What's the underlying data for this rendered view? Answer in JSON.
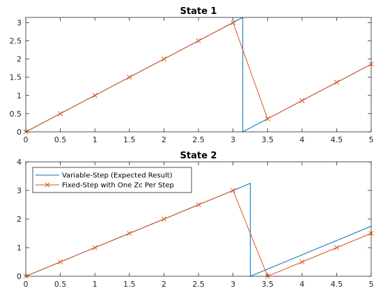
{
  "chart_data": [
    {
      "type": "line",
      "title": "State 1",
      "xlabel": "",
      "ylabel": "",
      "xlim": [
        0,
        5
      ],
      "ylim": [
        0,
        3.1416
      ],
      "xticks": [
        0,
        0.5,
        1,
        1.5,
        2,
        2.5,
        3,
        3.5,
        4,
        4.5,
        5
      ],
      "xtick_labels": [
        "0",
        "0.5",
        "1",
        "1.5",
        "2",
        "2.5",
        "3",
        "3.5",
        "4",
        "4.5",
        "5"
      ],
      "yticks": [
        0,
        0.5,
        1,
        1.5,
        2,
        2.5,
        3
      ],
      "ytick_labels": [
        "0",
        "0.5",
        "1",
        "1.5",
        "2",
        "2.5",
        "3"
      ],
      "grid": false,
      "legend": false,
      "series": [
        {
          "color": "#0072BD",
          "marker": "none",
          "x": [
            0,
            3.1416,
            3.1416,
            5
          ],
          "y": [
            0,
            3.1416,
            0,
            1.858
          ]
        },
        {
          "color": "#D95319",
          "marker": "x",
          "x": [
            0,
            0.5,
            1,
            1.5,
            2,
            2.5,
            3,
            3.5,
            4,
            4.5,
            5
          ],
          "y": [
            0,
            0.5,
            1,
            1.5,
            2,
            2.5,
            3,
            0.358,
            0.858,
            1.358,
            1.858
          ]
        }
      ]
    },
    {
      "type": "line",
      "title": "State 2",
      "xlabel": "",
      "ylabel": "",
      "xlim": [
        0,
        5
      ],
      "ylim": [
        0,
        4
      ],
      "xticks": [
        0,
        0.5,
        1,
        1.5,
        2,
        2.5,
        3,
        3.5,
        4,
        4.5,
        5
      ],
      "xtick_labels": [
        "0",
        "0.5",
        "1",
        "1.5",
        "2",
        "2.5",
        "3",
        "3.5",
        "4",
        "4.5",
        "5"
      ],
      "yticks": [
        0,
        1,
        2,
        3,
        4
      ],
      "ytick_labels": [
        "0",
        "1",
        "2",
        "3",
        "4"
      ],
      "grid": false,
      "legend": true,
      "legend_position": "top-left",
      "series": [
        {
          "name": "Variable-Step (Expected Result)",
          "color": "#0072BD",
          "marker": "none",
          "x": [
            0,
            3.25,
            3.25,
            5
          ],
          "y": [
            0,
            3.25,
            0,
            1.75
          ]
        },
        {
          "name": "Fixed-Step with One Zc Per Step",
          "color": "#D95319",
          "marker": "x",
          "x": [
            0,
            0.5,
            1,
            1.5,
            2,
            2.5,
            3,
            3.5,
            4,
            4.5,
            5
          ],
          "y": [
            0,
            0.5,
            1,
            1.5,
            2,
            2.5,
            3,
            0,
            0.5,
            1,
            1.5
          ]
        }
      ]
    }
  ]
}
